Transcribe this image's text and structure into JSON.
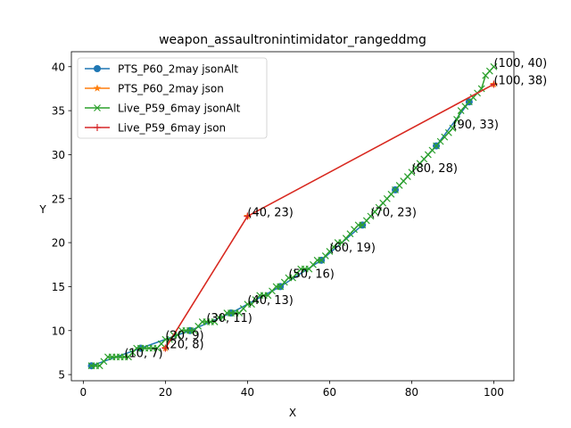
{
  "chart_data": {
    "type": "line",
    "title": "weapon_assaultronintimidator_rangeddmg",
    "xlabel": "X",
    "ylabel": "Y",
    "xlim": [
      -2.9,
      104.9
    ],
    "ylim": [
      4.3,
      41.7
    ],
    "xticks": [
      0,
      20,
      40,
      60,
      80,
      100
    ],
    "yticks": [
      5,
      10,
      15,
      20,
      25,
      30,
      35,
      40
    ],
    "grid": false,
    "legend_position": "top-left",
    "series": [
      {
        "name": "PTS_P60_2may jsonAlt",
        "color": "#1f77b4",
        "marker": "circle",
        "x": [
          2,
          14,
          26,
          36,
          48,
          58,
          68,
          76,
          86,
          94
        ],
        "y": [
          6,
          8,
          10,
          12,
          15,
          18,
          22,
          26,
          31,
          36
        ]
      },
      {
        "name": "PTS_P60_2may json",
        "color": "#ff7f0e",
        "marker": "star",
        "x": [
          20,
          40,
          100
        ],
        "y": [
          8,
          23,
          38
        ]
      },
      {
        "name": "Live_P59_6may jsonAlt",
        "color": "#2ca02c",
        "marker": "x",
        "x": [
          2,
          3,
          4,
          5,
          6,
          7,
          8,
          9,
          10,
          11,
          12,
          13,
          14,
          15,
          16,
          17,
          18,
          19,
          20,
          21,
          22,
          23,
          24,
          25,
          26,
          27,
          28,
          29,
          30,
          31,
          32,
          33,
          34,
          35,
          36,
          37,
          38,
          39,
          40,
          41,
          42,
          43,
          44,
          45,
          46,
          47,
          48,
          49,
          50,
          51,
          52,
          53,
          54,
          55,
          56,
          57,
          58,
          59,
          60,
          61,
          62,
          63,
          64,
          65,
          66,
          67,
          68,
          69,
          70,
          71,
          72,
          73,
          74,
          75,
          76,
          77,
          78,
          79,
          80,
          81,
          82,
          83,
          84,
          85,
          86,
          87,
          88,
          89,
          90,
          91,
          92,
          93,
          94,
          95,
          96,
          97,
          98,
          99,
          100
        ],
        "y": [
          6,
          6,
          6,
          6.5,
          7,
          7,
          7,
          7,
          7,
          7,
          7.5,
          8,
          8,
          8,
          8,
          8,
          8,
          8.5,
          9,
          9,
          9.5,
          9.5,
          10,
          10,
          10,
          10,
          10.5,
          11,
          11,
          11,
          11,
          11.5,
          11.5,
          12,
          12,
          12,
          12,
          12.5,
          13,
          13,
          13.5,
          14,
          14,
          14,
          14.5,
          15,
          15,
          15.5,
          16,
          16,
          16.5,
          17,
          17,
          17,
          17.5,
          18,
          18,
          18.5,
          19,
          19.5,
          20,
          20,
          20.5,
          21,
          21.5,
          22,
          22,
          22.5,
          23,
          23.5,
          24,
          24.5,
          25,
          25.5,
          26,
          26.5,
          27,
          27.5,
          28,
          28.5,
          29,
          29.5,
          30,
          30.5,
          31,
          31.5,
          32,
          32.5,
          33,
          34,
          35,
          35.5,
          36,
          36.5,
          37,
          37.5,
          39,
          39.5,
          40
        ]
      },
      {
        "name": "Live_P59_6may json",
        "color": "#d62728",
        "marker": "plus",
        "x": [
          20,
          40,
          100
        ],
        "y": [
          8,
          23,
          38
        ]
      }
    ],
    "annotations": [
      {
        "text": "(10, 7)",
        "x": 10,
        "y": 7
      },
      {
        "text": "(20, 9)",
        "x": 20,
        "y": 9
      },
      {
        "text": "(20, 8)",
        "x": 20,
        "y": 8
      },
      {
        "text": "(30, 11)",
        "x": 30,
        "y": 11
      },
      {
        "text": "(40, 23)",
        "x": 40,
        "y": 23
      },
      {
        "text": "(40, 13)",
        "x": 40,
        "y": 13
      },
      {
        "text": "(50, 16)",
        "x": 50,
        "y": 16
      },
      {
        "text": "(60, 19)",
        "x": 60,
        "y": 19
      },
      {
        "text": "(70, 23)",
        "x": 70,
        "y": 23
      },
      {
        "text": "(80, 28)",
        "x": 80,
        "y": 28
      },
      {
        "text": "(90, 33)",
        "x": 90,
        "y": 33
      },
      {
        "text": "(100, 40)",
        "x": 100,
        "y": 40
      },
      {
        "text": "(100, 38)",
        "x": 100,
        "y": 38
      }
    ]
  }
}
